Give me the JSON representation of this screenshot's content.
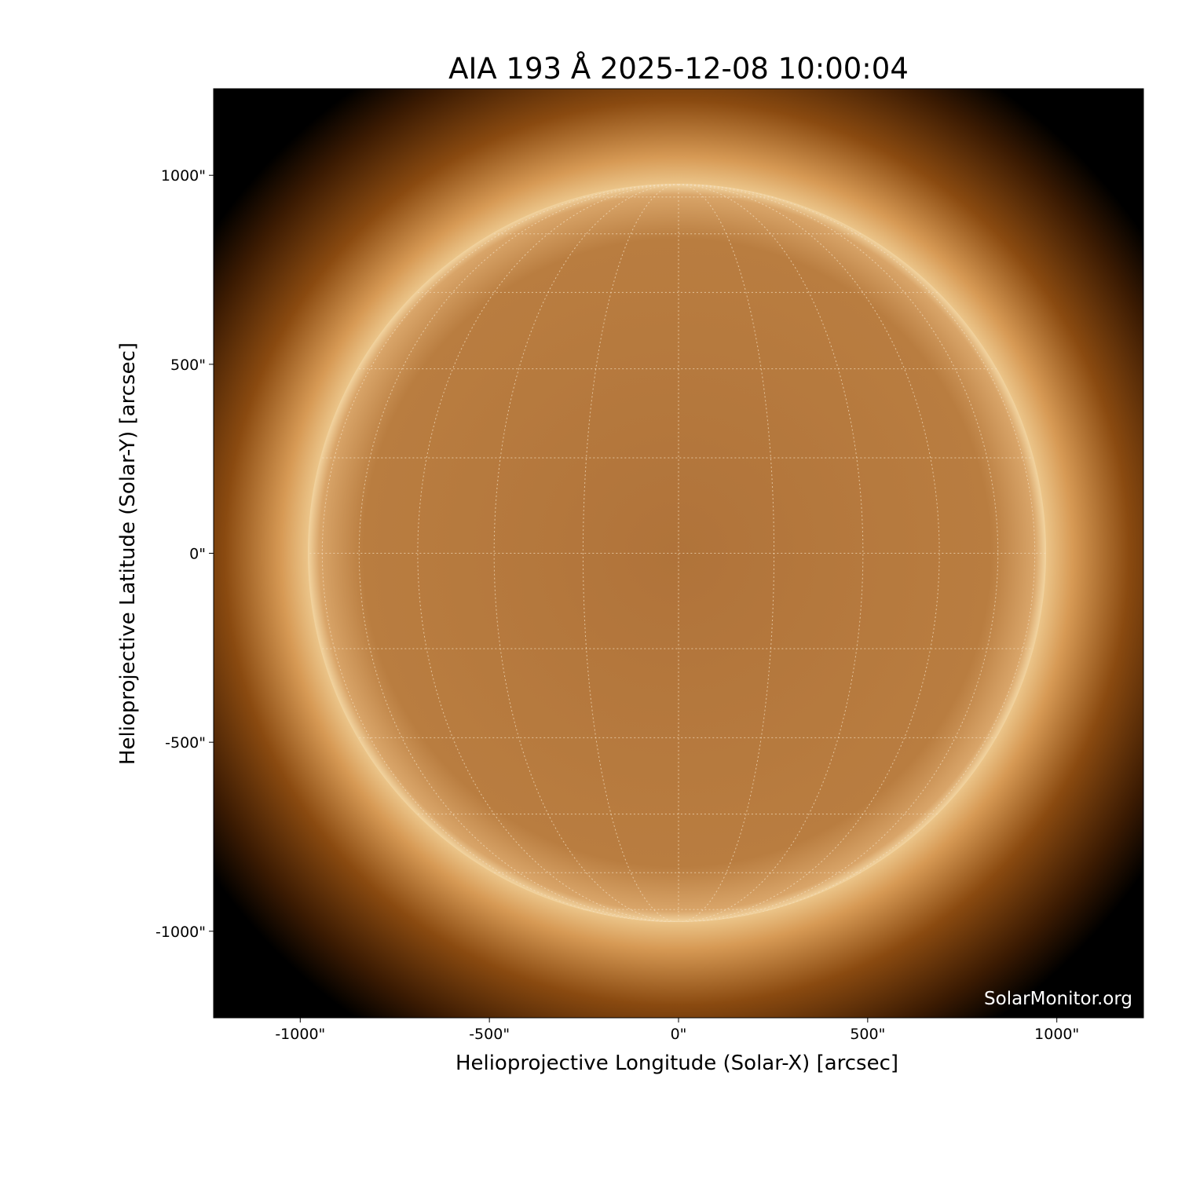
{
  "chart_data": {
    "type": "heatmap",
    "title": "AIA 193 Å 2025-12-08 10:00:04",
    "xlabel": "Helioprojective Longitude (Solar-X) [arcsec]",
    "ylabel": "Helioprojective Latitude (Solar-Y) [arcsec]",
    "xlim": [
      -1229,
      1229
    ],
    "ylim": [
      -1229,
      1229
    ],
    "xticks": [
      -1000,
      -500,
      0,
      500,
      1000
    ],
    "xtick_labels": [
      "-1000\"",
      "-500\"",
      "0\"",
      "500\"",
      "1000\""
    ],
    "yticks": [
      1000,
      500,
      0,
      -500,
      -1000
    ],
    "ytick_labels": [
      "1000\"",
      "500\"",
      "0\"",
      "-500\"",
      "-1000\""
    ],
    "solar_radius_arcsec": 975,
    "grid": "heliographic, dotted",
    "colormap": "sdoaia193",
    "colors": {
      "background": "#000000",
      "corona": "#8a4a10",
      "disk": "#b87a3a",
      "limb": "#f5d9a8"
    }
  },
  "watermark": "SolarMonitor.org"
}
